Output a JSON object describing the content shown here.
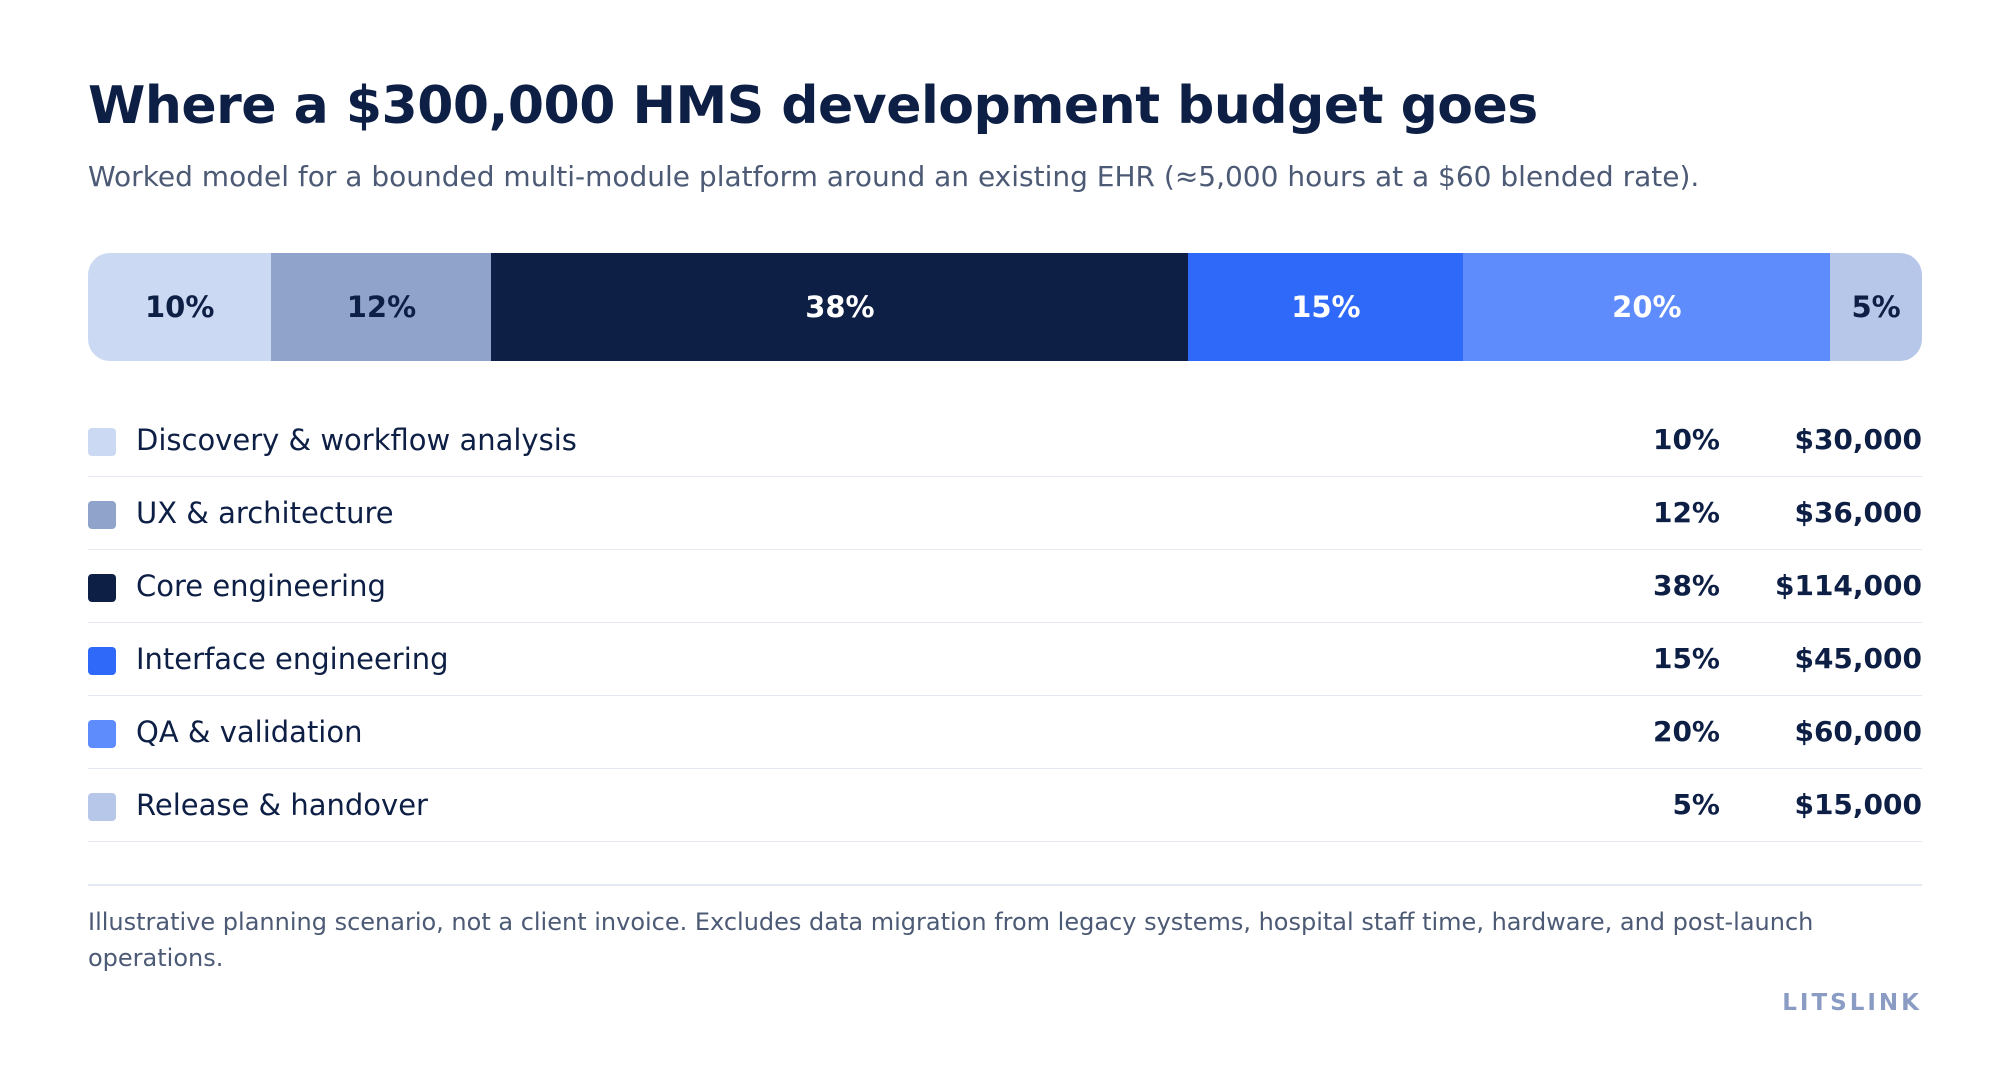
{
  "header": {
    "title": "Where a $300,000 HMS development budget goes",
    "subtitle": "Worked model for a bounded multi-module platform around an existing EHR (≈5,000 hours at a $60 blended rate)."
  },
  "chart_data": {
    "type": "bar",
    "title": "Where a $300,000 HMS development budget goes",
    "subtitle": "Worked model for a bounded multi-module platform around an existing EHR (≈5,000 hours at a $60 blended rate).",
    "categories": [
      "Discovery & workflow analysis",
      "UX & architecture",
      "Core engineering",
      "Interface engineering",
      "QA & validation",
      "Release & handover"
    ],
    "series": [
      {
        "values": [
          10,
          12,
          38,
          15,
          20,
          5
        ]
      }
    ],
    "segment_labels": [
      "10%",
      "12%",
      "38%",
      "15%",
      "20%",
      "5%"
    ],
    "amounts": [
      "$30,000",
      "$36,000",
      "$114,000",
      "$45,000",
      "$60,000",
      "$15,000"
    ],
    "colors": [
      "#ccd9f2",
      "#90a4cb",
      "#0e1f45",
      "#2f69fa",
      "#5e8cfd",
      "#b7c7e9"
    ],
    "label_colors": [
      "#0e1f45",
      "#0e1f45",
      "#ffffff",
      "#ffffff",
      "#ffffff",
      "#0e1f45"
    ],
    "stacked": true,
    "orientation": "horizontal",
    "legend_position": "below"
  },
  "footer": {
    "note": "Illustrative planning scenario, not a client invoice. Excludes data migration from legacy systems, hospital staff time, hardware, and post-launch operations.",
    "brand": "LITSLINK"
  }
}
